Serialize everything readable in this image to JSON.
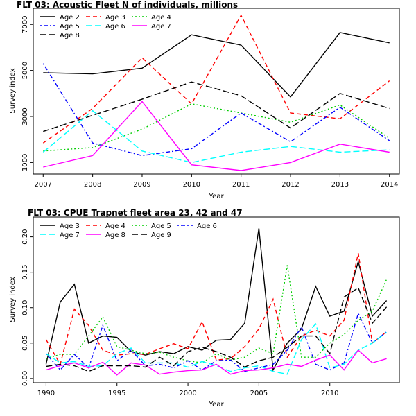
{
  "chart_data": [
    {
      "type": "line",
      "title": "FLT 03: Acoustic Fleet   N of individuals, millions",
      "xlabel": "Year",
      "ylabel": "Survey index",
      "x": [
        2007,
        2008,
        2009,
        2010,
        2011,
        2012,
        2013,
        2014
      ],
      "xlim": [
        2006.8,
        2014.2
      ],
      "ylim": [
        500,
        7700
      ],
      "xticks": [
        2007,
        2008,
        2009,
        2010,
        2011,
        2012,
        2013,
        2014
      ],
      "yticks": [
        1000,
        3000,
        5000,
        7000
      ],
      "legend_columns": 3,
      "series": [
        {
          "name": "Age 2",
          "color": "#000000",
          "dash": "solid",
          "values": [
            4900,
            4850,
            5100,
            6550,
            6100,
            3850,
            6650,
            6200
          ]
        },
        {
          "name": "Age 3",
          "color": "#ff0000",
          "dash": "dashed",
          "values": [
            1850,
            3350,
            5550,
            3550,
            7400,
            3150,
            2900,
            4550
          ]
        },
        {
          "name": "Age 4",
          "color": "#00cd00",
          "dash": "dotted",
          "values": [
            1500,
            1650,
            2450,
            3550,
            3150,
            2750,
            3500,
            2050
          ]
        },
        {
          "name": "Age 5",
          "color": "#0000ff",
          "dash": "dotdash",
          "values": [
            5300,
            1850,
            1300,
            1600,
            3150,
            1900,
            3400,
            1950
          ]
        },
        {
          "name": "Age 6",
          "color": "#00ffff",
          "dash": "longdash",
          "values": [
            1450,
            3250,
            1500,
            1000,
            1450,
            1700,
            1450,
            1550
          ]
        },
        {
          "name": "Age 7",
          "color": "#ff00ff",
          "dash": "solid",
          "values": [
            800,
            1300,
            3650,
            900,
            650,
            1000,
            1800,
            1450
          ]
        },
        {
          "name": "Age 8",
          "color": "#000000",
          "dash": "longdash",
          "values": [
            2350,
            3050,
            3750,
            4500,
            3900,
            2500,
            4000,
            3350
          ]
        }
      ]
    },
    {
      "type": "line",
      "title": "FLT 03: CPUE Trapnet fleet area 23, 42 and 47",
      "xlabel": "Year",
      "ylabel": "Survey index",
      "x": [
        1990,
        1991,
        1992,
        1993,
        1994,
        1995,
        1996,
        1997,
        1998,
        1999,
        2000,
        2001,
        2002,
        2003,
        2004,
        2005,
        2006,
        2007,
        2008,
        2009,
        2010,
        2011,
        2012,
        2013,
        2014
      ],
      "xlim": [
        1989.1,
        2014.9
      ],
      "ylim": [
        -0.006,
        0.228
      ],
      "xticks": [
        1990,
        1995,
        2000,
        2005,
        2010
      ],
      "yticks": [
        0.0,
        0.05,
        0.1,
        0.15,
        0.2
      ],
      "ytick_labels": [
        "0.00",
        "0.05",
        "0.10",
        "0.15",
        "0.20"
      ],
      "legend_columns": 4,
      "series": [
        {
          "name": "Age 3",
          "color": "#000000",
          "dash": "solid",
          "values": [
            0.02,
            0.108,
            0.133,
            0.05,
            0.06,
            0.058,
            0.038,
            0.033,
            0.038,
            0.035,
            0.045,
            0.04,
            0.054,
            0.055,
            0.078,
            0.212,
            0.012,
            0.05,
            0.07,
            0.13,
            0.088,
            0.095,
            0.165,
            0.088,
            0.11
          ]
        },
        {
          "name": "Age 4",
          "color": "#ff0000",
          "dash": "dashed",
          "values": [
            0.055,
            0.02,
            0.098,
            0.075,
            0.04,
            0.033,
            0.035,
            0.034,
            0.042,
            0.049,
            0.042,
            0.08,
            0.026,
            0.028,
            0.045,
            0.07,
            0.112,
            0.03,
            0.06,
            0.068,
            0.06,
            0.082,
            0.177,
            0.05,
            0.066
          ]
        },
        {
          "name": "Age 5",
          "color": "#00cd00",
          "dash": "dotted",
          "values": [
            0.028,
            0.034,
            0.034,
            0.06,
            0.087,
            0.045,
            0.04,
            0.035,
            0.037,
            0.03,
            0.025,
            0.022,
            0.035,
            0.026,
            0.03,
            0.043,
            0.035,
            0.16,
            0.03,
            0.03,
            0.05,
            0.062,
            0.082,
            0.095,
            0.14
          ]
        },
        {
          "name": "Age 6",
          "color": "#0000ff",
          "dash": "dotdash",
          "values": [
            0.035,
            0.012,
            0.034,
            0.015,
            0.075,
            0.025,
            0.04,
            0.018,
            0.02,
            0.015,
            0.025,
            0.012,
            0.025,
            0.026,
            0.01,
            0.015,
            0.02,
            0.04,
            0.073,
            0.02,
            0.012,
            0.022,
            0.092,
            0.05,
            0.066
          ]
        },
        {
          "name": "Age 7",
          "color": "#00ffff",
          "dash": "longdash",
          "values": [
            0.035,
            0.022,
            0.024,
            0.017,
            0.018,
            0.035,
            0.043,
            0.022,
            0.022,
            0.022,
            0.016,
            0.024,
            0.018,
            0.01,
            0.015,
            0.018,
            0.01,
            0.006,
            0.055,
            0.077,
            0.015,
            0.02,
            0.04,
            0.05,
            0.065
          ]
        },
        {
          "name": "Age 8",
          "color": "#ff00ff",
          "dash": "solid",
          "values": [
            0.012,
            0.018,
            0.022,
            0.015,
            0.023,
            0.005,
            0.022,
            0.019,
            0.006,
            0.009,
            0.011,
            0.012,
            0.02,
            0.006,
            0.011,
            0.012,
            0.015,
            0.02,
            0.017,
            0.026,
            0.033,
            0.012,
            0.04,
            0.022,
            0.028
          ]
        },
        {
          "name": "Age 9",
          "color": "#000000",
          "dash": "longdash",
          "values": [
            0.017,
            0.02,
            0.018,
            0.01,
            0.018,
            0.018,
            0.018,
            0.016,
            0.03,
            0.018,
            0.038,
            0.044,
            0.038,
            0.03,
            0.016,
            0.025,
            0.03,
            0.044,
            0.06,
            0.06,
            0.035,
            0.115,
            0.128,
            0.078,
            0.101
          ]
        }
      ]
    }
  ]
}
